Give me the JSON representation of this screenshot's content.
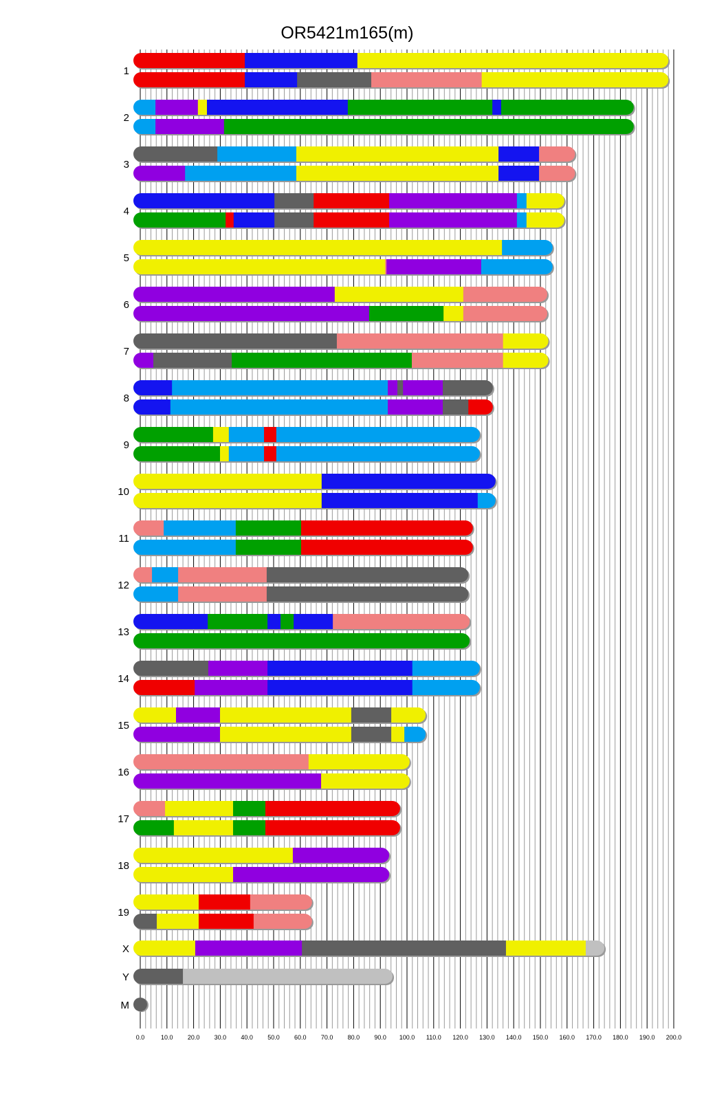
{
  "chart_data": {
    "type": "chromosome-painting",
    "title": "OR5421m165(m)",
    "xlabel": "",
    "ylabel": "",
    "xlim": [
      0,
      200
    ],
    "x_ticks": [
      "0.0",
      "10.0",
      "20.0",
      "30.0",
      "40.0",
      "50.0",
      "60.0",
      "70.0",
      "80.0",
      "90.0",
      "100.0",
      "110.0",
      "120.0",
      "130.0",
      "140.0",
      "150.0",
      "160.0",
      "170.0",
      "180.0",
      "190.0",
      "200.0"
    ],
    "grid": "vertical lines every 2 units, darker every 10",
    "colors": {
      "red": "#f00000",
      "blue": "#1414f0",
      "yellow": "#f0f000",
      "gray": "#606060",
      "pink": "#f08080",
      "lightblue": "#00a0f0",
      "purple": "#9000e0",
      "green": "#00a000",
      "lightgray": "#c0c0c0"
    },
    "chromosomes": [
      {
        "label": "1",
        "haplotypes": [
          [
            [
              39.2,
              "red"
            ],
            [
              81.4,
              "blue"
            ],
            [
              198,
              "yellow"
            ]
          ],
          [
            [
              39.2,
              "red"
            ],
            [
              58.8,
              "blue"
            ],
            [
              86.6,
              "gray"
            ],
            [
              128,
              "pink"
            ],
            [
              198,
              "yellow"
            ]
          ]
        ]
      },
      {
        "label": "2",
        "haplotypes": [
          [
            [
              5.7,
              "lightblue"
            ],
            [
              21.6,
              "purple"
            ],
            [
              25,
              "yellow"
            ],
            [
              77.8,
              "blue"
            ],
            [
              132,
              "green"
            ],
            [
              135.3,
              "blue"
            ],
            [
              185,
              "green"
            ]
          ],
          [
            [
              5.7,
              "lightblue"
            ],
            [
              31.4,
              "purple"
            ],
            [
              185,
              "green"
            ]
          ]
        ]
      },
      {
        "label": "3",
        "haplotypes": [
          [
            [
              28.9,
              "gray"
            ],
            [
              58.5,
              "lightblue"
            ],
            [
              134.3,
              "yellow"
            ],
            [
              149.5,
              "blue"
            ],
            [
              163,
              "pink"
            ]
          ],
          [
            [
              16.8,
              "purple"
            ],
            [
              58.5,
              "lightblue"
            ],
            [
              134.3,
              "yellow"
            ],
            [
              149.5,
              "blue"
            ],
            [
              163,
              "pink"
            ]
          ]
        ]
      },
      {
        "label": "4",
        "haplotypes": [
          [
            [
              50.3,
              "blue"
            ],
            [
              65,
              "gray"
            ],
            [
              93.3,
              "red"
            ],
            [
              141.2,
              "purple"
            ],
            [
              144.8,
              "lightblue"
            ],
            [
              159,
              "yellow"
            ]
          ],
          [
            [
              32,
              "green"
            ],
            [
              35,
              "red"
            ],
            [
              50.3,
              "blue"
            ],
            [
              65,
              "gray"
            ],
            [
              93.3,
              "red"
            ],
            [
              141.2,
              "purple"
            ],
            [
              144.8,
              "lightblue"
            ],
            [
              159,
              "yellow"
            ]
          ]
        ]
      },
      {
        "label": "5",
        "haplotypes": [
          [
            [
              135.6,
              "yellow"
            ],
            [
              154.6,
              "lightblue"
            ]
          ],
          [
            [
              91.8,
              "yellow"
            ],
            [
              92.3,
              "pink"
            ],
            [
              127.8,
              "purple"
            ],
            [
              154.6,
              "lightblue"
            ]
          ]
        ]
      },
      {
        "label": "6",
        "haplotypes": [
          [
            [
              72.9,
              "purple"
            ],
            [
              121.1,
              "yellow"
            ],
            [
              152.6,
              "pink"
            ]
          ],
          [
            [
              85.8,
              "purple"
            ],
            [
              113.7,
              "green"
            ],
            [
              121.1,
              "yellow"
            ],
            [
              152.6,
              "pink"
            ]
          ]
        ]
      },
      {
        "label": "7",
        "haplotypes": [
          [
            [
              73.7,
              "gray"
            ],
            [
              136,
              "pink"
            ],
            [
              153,
              "yellow"
            ]
          ],
          [
            [
              4.9,
              "purple"
            ],
            [
              34.3,
              "gray"
            ],
            [
              101.8,
              "green"
            ],
            [
              136,
              "pink"
            ],
            [
              153,
              "yellow"
            ]
          ]
        ]
      },
      {
        "label": "8",
        "haplotypes": [
          [
            [
              11.9,
              "blue"
            ],
            [
              92.8,
              "lightblue"
            ],
            [
              96.4,
              "purple"
            ],
            [
              98.5,
              "gray"
            ],
            [
              113.4,
              "purple"
            ],
            [
              132.2,
              "gray"
            ]
          ],
          [
            [
              11.3,
              "blue"
            ],
            [
              92.8,
              "lightblue"
            ],
            [
              113.4,
              "purple"
            ],
            [
              123,
              "gray"
            ],
            [
              132.2,
              "red"
            ]
          ]
        ]
      },
      {
        "label": "9",
        "haplotypes": [
          [
            [
              27.3,
              "green"
            ],
            [
              33.2,
              "yellow"
            ],
            [
              46.4,
              "lightblue"
            ],
            [
              51,
              "red"
            ],
            [
              127.3,
              "lightblue"
            ]
          ],
          [
            [
              29.9,
              "green"
            ],
            [
              33.2,
              "yellow"
            ],
            [
              46.4,
              "lightblue"
            ],
            [
              51,
              "red"
            ],
            [
              127.3,
              "lightblue"
            ]
          ]
        ]
      },
      {
        "label": "10",
        "haplotypes": [
          [
            [
              68,
              "yellow"
            ],
            [
              133.2,
              "blue"
            ]
          ],
          [
            [
              68,
              "yellow"
            ],
            [
              126.5,
              "blue"
            ],
            [
              133.2,
              "lightblue"
            ]
          ]
        ]
      },
      {
        "label": "11",
        "haplotypes": [
          [
            [
              8.8,
              "pink"
            ],
            [
              35.8,
              "lightblue"
            ],
            [
              60.3,
              "green"
            ],
            [
              124.7,
              "red"
            ]
          ],
          [
            [
              35.8,
              "lightblue"
            ],
            [
              60.3,
              "green"
            ],
            [
              124.7,
              "red"
            ]
          ]
        ]
      },
      {
        "label": "12",
        "haplotypes": [
          [
            [
              4.4,
              "pink"
            ],
            [
              14.2,
              "lightblue"
            ],
            [
              47.4,
              "pink"
            ],
            [
              123,
              "gray"
            ]
          ],
          [
            [
              14.2,
              "lightblue"
            ],
            [
              47.4,
              "pink"
            ],
            [
              123,
              "gray"
            ]
          ]
        ]
      },
      {
        "label": "13",
        "haplotypes": [
          [
            [
              25.3,
              "blue"
            ],
            [
              47.7,
              "green"
            ],
            [
              52.6,
              "blue"
            ],
            [
              57.5,
              "green"
            ],
            [
              72.2,
              "blue"
            ],
            [
              123.5,
              "pink"
            ]
          ],
          [
            [
              123.5,
              "green"
            ]
          ]
        ]
      },
      {
        "label": "14",
        "haplotypes": [
          [
            [
              25.5,
              "gray"
            ],
            [
              47.7,
              "purple"
            ],
            [
              102,
              "blue"
            ],
            [
              127.3,
              "lightblue"
            ]
          ],
          [
            [
              20.4,
              "red"
            ],
            [
              47.7,
              "purple"
            ],
            [
              102,
              "blue"
            ],
            [
              127.3,
              "lightblue"
            ]
          ]
        ]
      },
      {
        "label": "15",
        "haplotypes": [
          [
            [
              13.4,
              "yellow"
            ],
            [
              29.9,
              "purple"
            ],
            [
              79.1,
              "yellow"
            ],
            [
              94.1,
              "gray"
            ],
            [
              107,
              "yellow"
            ]
          ],
          [
            [
              29.9,
              "purple"
            ],
            [
              79.1,
              "yellow"
            ],
            [
              94.1,
              "gray"
            ],
            [
              99,
              "yellow"
            ],
            [
              107,
              "lightblue"
            ]
          ]
        ]
      },
      {
        "label": "16",
        "haplotypes": [
          [
            [
              63.1,
              "pink"
            ],
            [
              101,
              "yellow"
            ]
          ],
          [
            [
              67.8,
              "purple"
            ],
            [
              101,
              "yellow"
            ]
          ]
        ]
      },
      {
        "label": "17",
        "haplotypes": [
          [
            [
              9.3,
              "pink"
            ],
            [
              34.8,
              "yellow"
            ],
            [
              46.9,
              "green"
            ],
            [
              97.4,
              "red"
            ]
          ],
          [
            [
              12.6,
              "green"
            ],
            [
              34.8,
              "yellow"
            ],
            [
              46.9,
              "green"
            ],
            [
              97.4,
              "red"
            ]
          ]
        ]
      },
      {
        "label": "18",
        "haplotypes": [
          [
            [
              57.2,
              "yellow"
            ],
            [
              93.3,
              "purple"
            ]
          ],
          [
            [
              34.8,
              "yellow"
            ],
            [
              93.3,
              "purple"
            ]
          ]
        ]
      },
      {
        "label": "19",
        "haplotypes": [
          [
            [
              21.9,
              "yellow"
            ],
            [
              41.2,
              "red"
            ],
            [
              64.4,
              "pink"
            ]
          ],
          [
            [
              6.2,
              "gray"
            ],
            [
              21.9,
              "yellow"
            ],
            [
              42.5,
              "red"
            ],
            [
              64.4,
              "pink"
            ]
          ]
        ]
      },
      {
        "label": "X",
        "haplotypes": [
          [
            [
              20.6,
              "yellow"
            ],
            [
              60.6,
              "purple"
            ],
            [
              137.1,
              "gray"
            ],
            [
              167,
              "yellow"
            ],
            [
              174,
              "lightgray"
            ]
          ]
        ]
      },
      {
        "label": "Y",
        "haplotypes": [
          [
            [
              16,
              "gray"
            ],
            [
              94.6,
              "lightgray"
            ]
          ]
        ]
      },
      {
        "label": "M",
        "haplotypes": [
          [
            [
              0.02,
              "gray"
            ]
          ]
        ]
      }
    ]
  }
}
